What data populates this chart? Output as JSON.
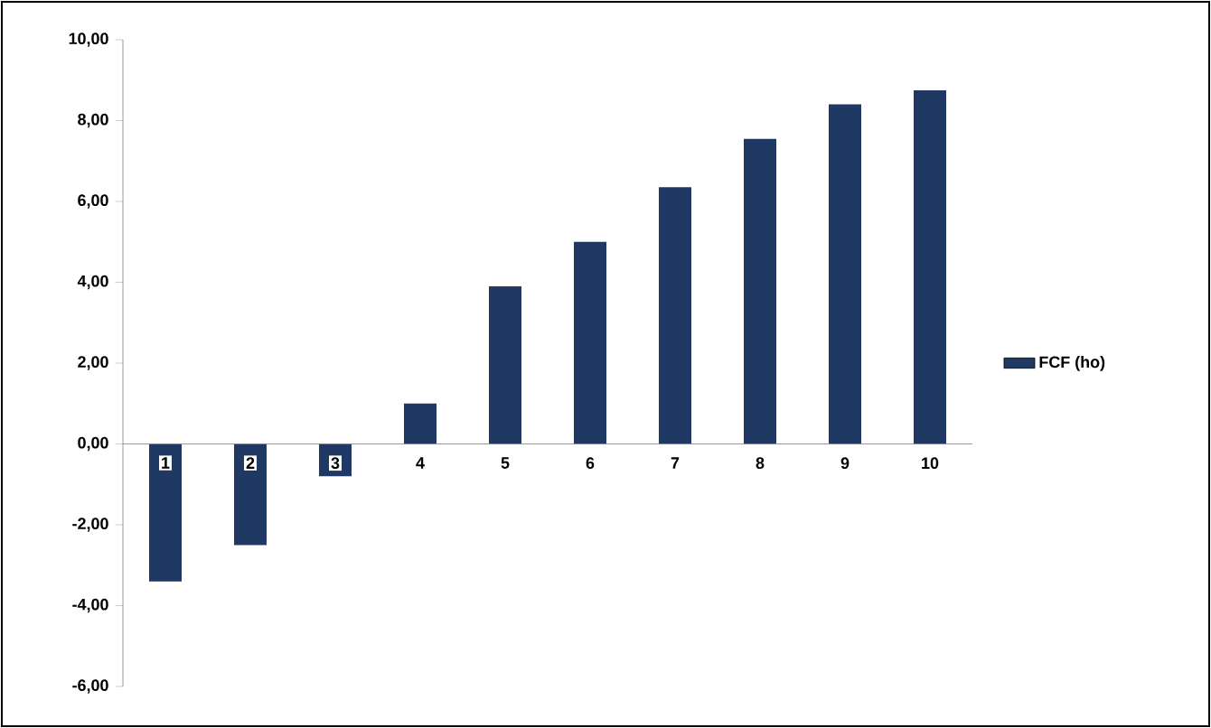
{
  "chart_data": {
    "type": "bar",
    "categories": [
      "1",
      "2",
      "3",
      "4",
      "5",
      "6",
      "7",
      "8",
      "9",
      "10"
    ],
    "series": [
      {
        "name": "FCF (ho)",
        "color": "#1f3864",
        "values": [
          -3.4,
          -2.5,
          -0.8,
          1.0,
          3.9,
          5.0,
          6.35,
          7.55,
          8.4,
          8.75
        ]
      }
    ],
    "ylim": [
      -6,
      10
    ],
    "yticks": [
      {
        "value": -6,
        "label": "-6,00"
      },
      {
        "value": -4,
        "label": "-4,00"
      },
      {
        "value": -2,
        "label": "-2,00"
      },
      {
        "value": 0,
        "label": "0,00"
      },
      {
        "value": 2,
        "label": "2,00"
      },
      {
        "value": 4,
        "label": "4,00"
      },
      {
        "value": 6,
        "label": "6,00"
      },
      {
        "value": 8,
        "label": "8,00"
      },
      {
        "value": 10,
        "label": "10,00"
      }
    ],
    "legend": "right"
  }
}
